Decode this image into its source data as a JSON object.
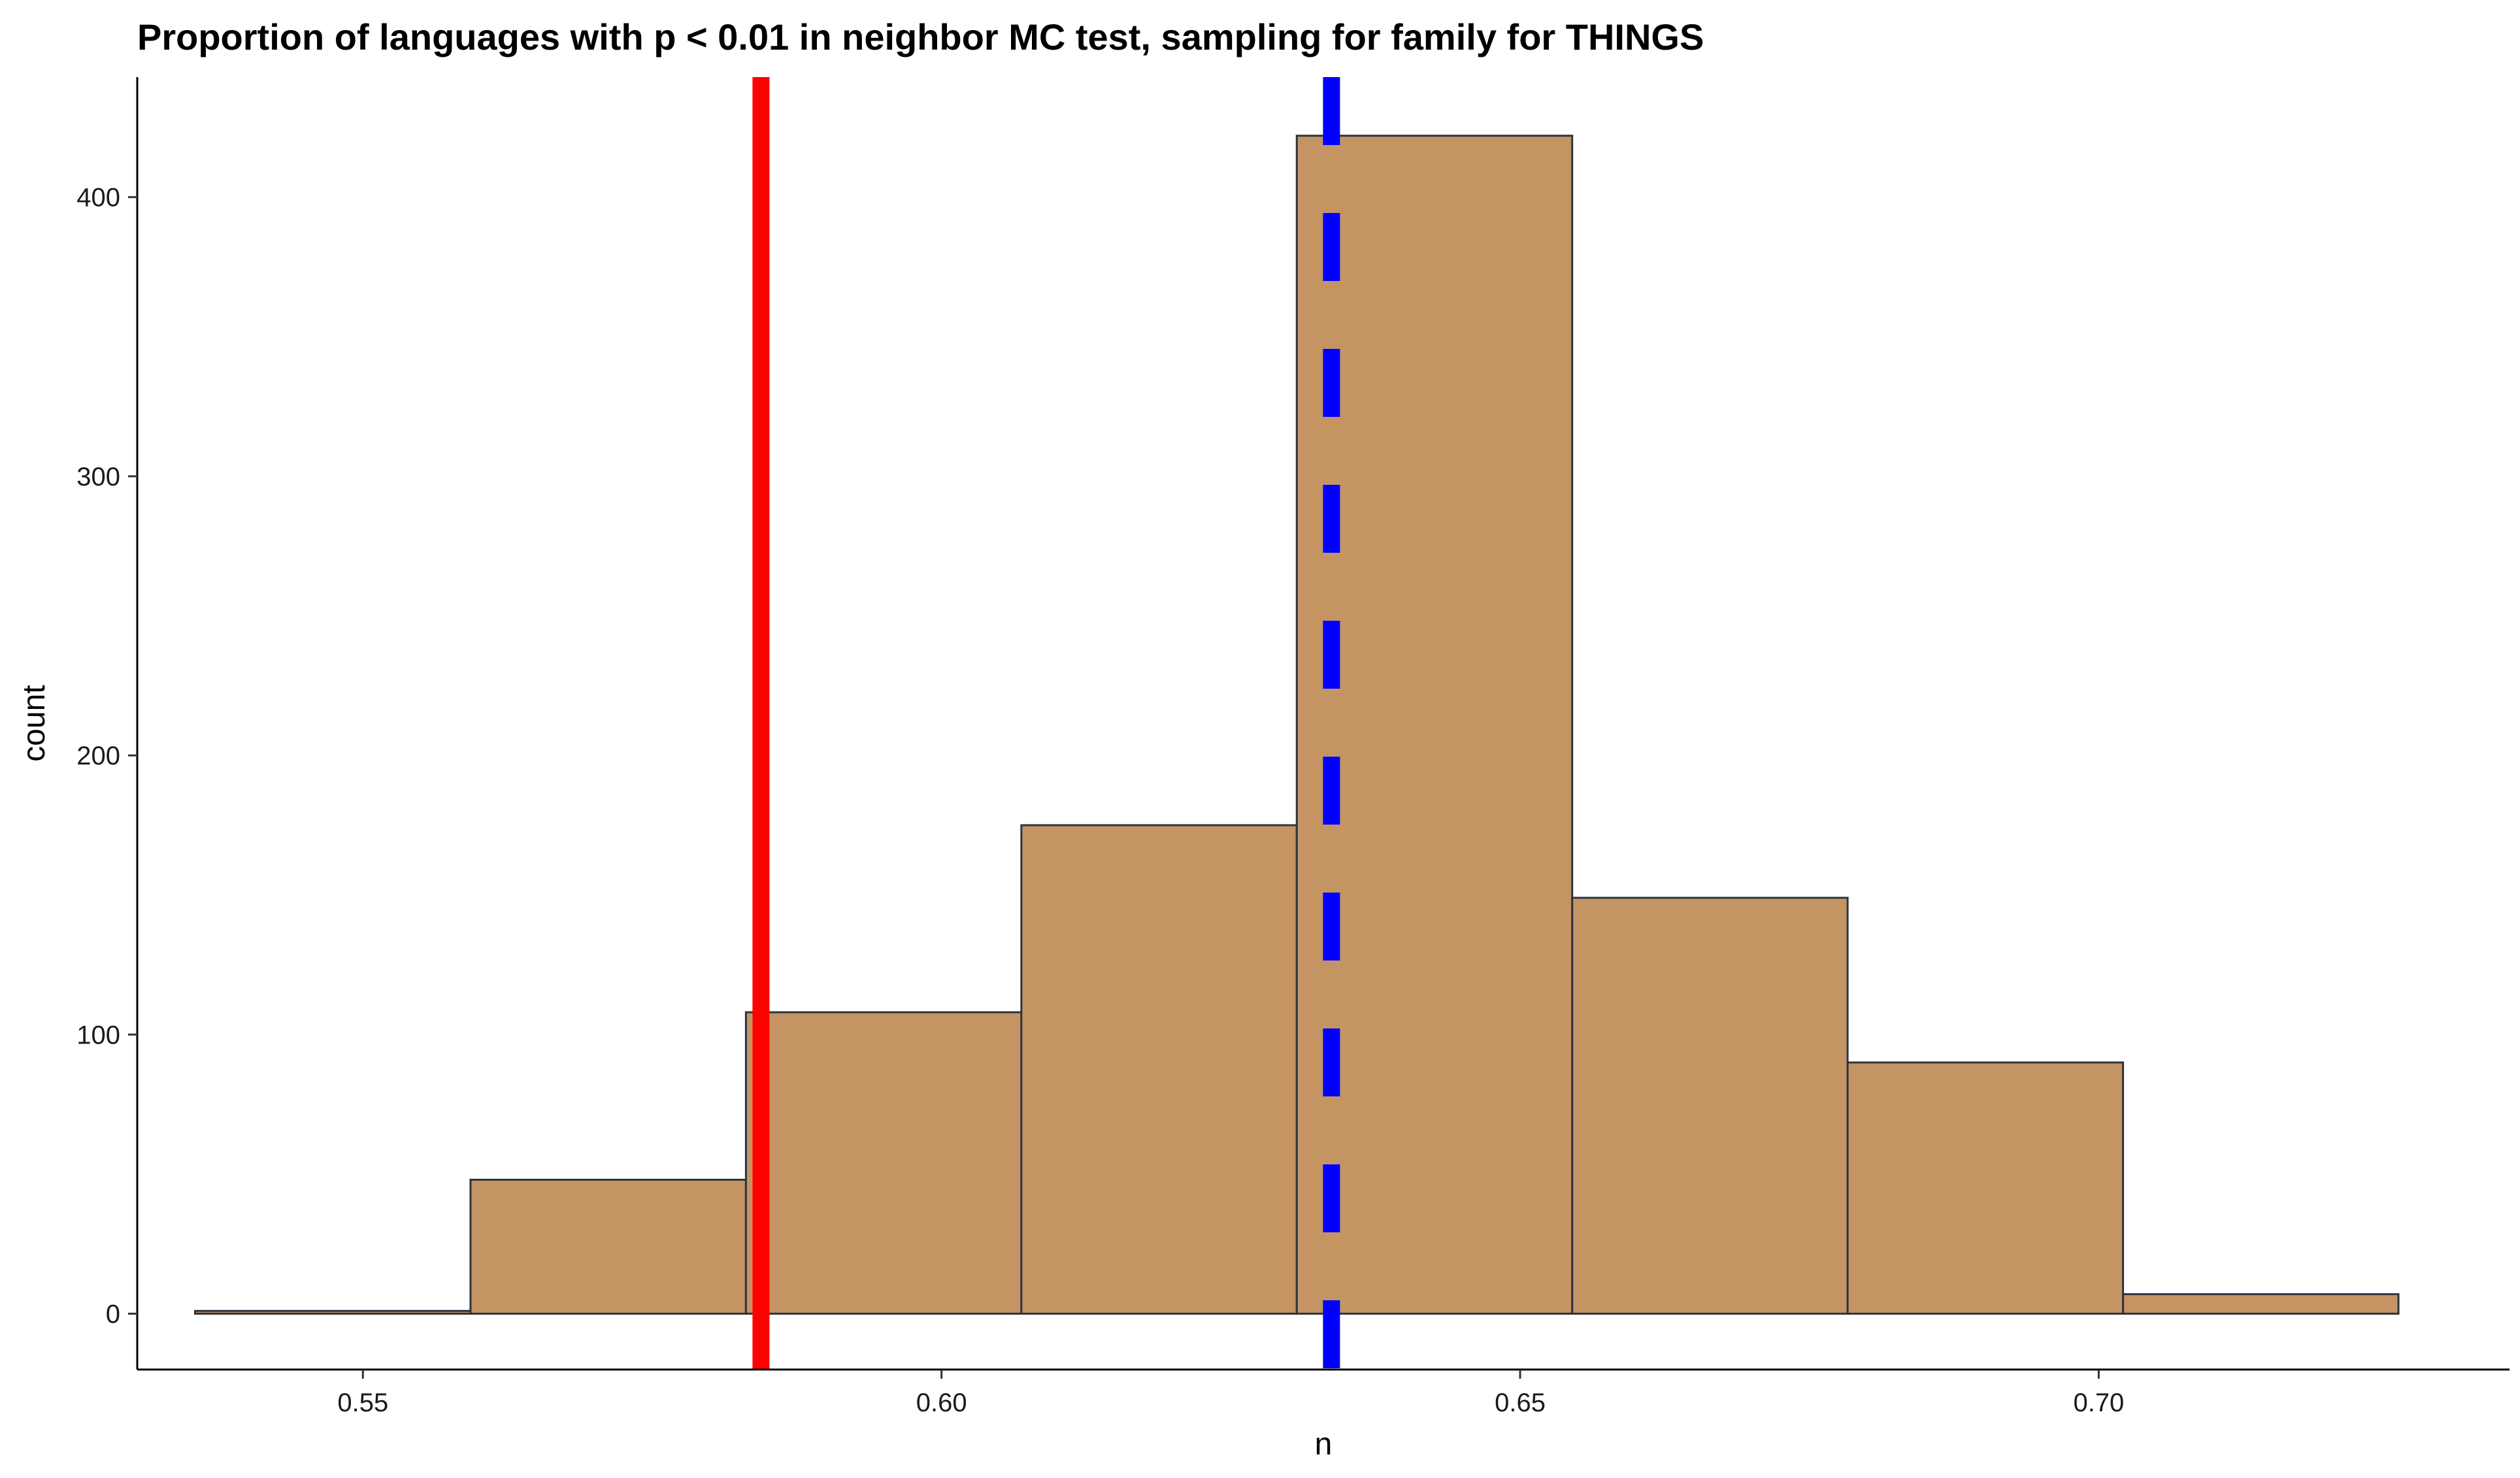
{
  "chart_data": {
    "type": "bar",
    "subtype": "histogram",
    "title": "Proportion of languages with p < 0.01 in neighbor MC test, sampling for family for THINGS",
    "xlabel": "n",
    "ylabel": "count",
    "xlim": [
      0.5305,
      0.7355
    ],
    "ylim": [
      -20,
      443
    ],
    "x_ticks": [
      0.55,
      0.6,
      0.65,
      0.7
    ],
    "x_tick_labels": [
      "0.55",
      "0.60",
      "0.65",
      "0.70"
    ],
    "y_ticks": [
      0,
      100,
      200,
      300,
      400
    ],
    "y_tick_labels": [
      "0",
      "100",
      "200",
      "300",
      "400"
    ],
    "grid": false,
    "bins": [
      {
        "x0": 0.5355,
        "x1": 0.5593,
        "count": 1
      },
      {
        "x0": 0.5593,
        "x1": 0.5831,
        "count": 48
      },
      {
        "x0": 0.5831,
        "x1": 0.6069,
        "count": 108
      },
      {
        "x0": 0.6069,
        "x1": 0.6307,
        "count": 175
      },
      {
        "x0": 0.6307,
        "x1": 0.6545,
        "count": 422
      },
      {
        "x0": 0.6545,
        "x1": 0.6783,
        "count": 149
      },
      {
        "x0": 0.6783,
        "x1": 0.7021,
        "count": 90
      },
      {
        "x0": 0.7021,
        "x1": 0.7259,
        "count": 7
      }
    ],
    "reference_lines": [
      {
        "x": 0.5844,
        "color": "#ff0000",
        "style": "solid"
      },
      {
        "x": 0.6337,
        "color": "#0000ff",
        "style": "dashed"
      }
    ],
    "colors": {
      "bar_fill": "#c49463",
      "bar_stroke": "#2b3540",
      "axis": "#000000"
    }
  }
}
